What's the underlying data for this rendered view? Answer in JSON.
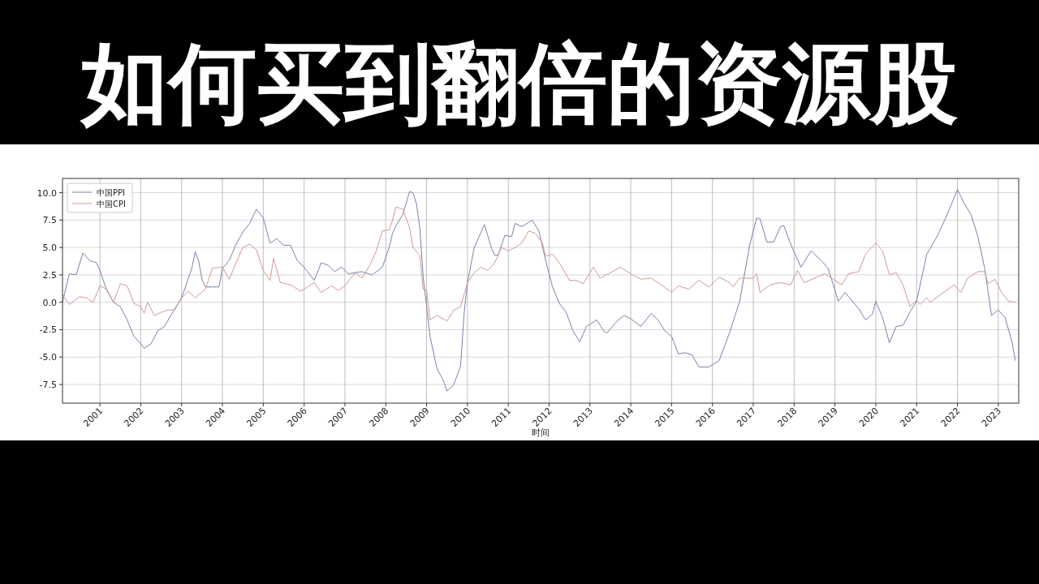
{
  "chart_data": {
    "type": "line",
    "title": "如何买到翻倍的资源股",
    "xlabel": "时间",
    "legend": "top left",
    "grid": true,
    "xlim": [
      "2000-02",
      "2023-07"
    ],
    "xticks": [
      "2001",
      "2002",
      "2003",
      "2004",
      "2005",
      "2006",
      "2007",
      "2008",
      "2009",
      "2010",
      "2011",
      "2012",
      "2013",
      "2014",
      "2015",
      "2016",
      "2017",
      "2018",
      "2019",
      "2020",
      "2021",
      "2022",
      "2023"
    ],
    "ylim": [
      -9.2,
      11.3
    ],
    "yticks": [
      {
        "value": -7.5,
        "label": "-7.5"
      },
      {
        "value": -5,
        "label": "-5.0"
      },
      {
        "value": -2.5,
        "label": "-2.5"
      },
      {
        "value": 0,
        "label": "0.0"
      },
      {
        "value": 2.5,
        "label": "2.5"
      },
      {
        "value": 5,
        "label": "5.0"
      },
      {
        "value": 7.5,
        "label": "7.5"
      },
      {
        "value": 10,
        "label": "10.0"
      }
    ],
    "series": [
      {
        "name": "中国PPI",
        "color": "#7c80aa",
        "x": [
          "2000-02",
          "2000-04",
          "2000-06",
          "2000-08",
          "2000-10",
          "2000-12",
          "2001-01",
          "2001-03",
          "2001-05",
          "2001-07",
          "2001-09",
          "2001-11",
          "2002-01",
          "2002-02",
          "2002-04",
          "2002-06",
          "2002-08",
          "2002-10",
          "2003-01",
          "2003-04",
          "2003-05",
          "2003-06",
          "2003-07",
          "2003-08",
          "2003-10",
          "2003-12",
          "2004-01",
          "2004-03",
          "2004-05",
          "2004-07",
          "2004-09",
          "2004-11",
          "2005-01",
          "2005-03",
          "2005-05",
          "2005-07",
          "2005-09",
          "2005-11",
          "2006-01",
          "2006-04",
          "2006-06",
          "2006-08",
          "2006-10",
          "2006-12",
          "2007-02",
          "2007-06",
          "2007-09",
          "2007-12",
          "2008-02",
          "2008-03",
          "2008-04",
          "2008-06",
          "2008-08",
          "2008-09",
          "2008-10",
          "2008-11",
          "2008-12",
          "2009-02",
          "2009-04",
          "2009-06",
          "2009-07",
          "2009-09",
          "2009-11",
          "2009-12",
          "2010-01",
          "2010-03",
          "2010-05",
          "2010-06",
          "2010-08",
          "2010-09",
          "2010-10",
          "2010-12",
          "2011-02",
          "2011-03",
          "2011-05",
          "2011-08",
          "2011-10",
          "2011-12",
          "2012-02",
          "2012-04",
          "2012-06",
          "2012-08",
          "2012-10",
          "2012-12",
          "2013-03",
          "2013-05",
          "2013-06",
          "2013-09",
          "2013-11",
          "2014-01",
          "2014-04",
          "2014-07",
          "2014-09",
          "2014-11",
          "2015-01",
          "2015-03",
          "2015-05",
          "2015-07",
          "2015-09",
          "2015-12",
          "2016-03",
          "2016-06",
          "2016-09",
          "2016-12",
          "2017-02",
          "2017-03",
          "2017-05",
          "2017-07",
          "2017-09",
          "2017-10",
          "2017-12",
          "2018-03",
          "2018-06",
          "2018-09",
          "2018-11",
          "2019-02",
          "2019-04",
          "2019-08",
          "2019-10",
          "2019-12",
          "2020-01",
          "2020-03",
          "2020-05",
          "2020-07",
          "2020-09",
          "2020-11",
          "2021-01",
          "2021-04",
          "2021-07",
          "2021-10",
          "2022-01",
          "2022-03",
          "2022-05",
          "2022-07",
          "2022-09",
          "2022-11",
          "2023-01",
          "2023-03",
          "2023-05",
          "2023-06"
        ],
        "values": [
          0.0,
          2.6,
          2.5,
          4.5,
          3.8,
          3.6,
          2.9,
          1.1,
          0.0,
          -0.4,
          -1.6,
          -3.1,
          -3.8,
          -4.2,
          -3.8,
          -2.6,
          -2.2,
          -1.1,
          0.4,
          3.1,
          4.6,
          3.8,
          2.1,
          1.4,
          1.4,
          1.4,
          3.1,
          3.8,
          5.3,
          6.4,
          7.2,
          8.5,
          7.7,
          5.4,
          5.8,
          5.2,
          5.2,
          3.8,
          3.2,
          2.0,
          3.6,
          3.4,
          2.8,
          3.2,
          2.6,
          2.8,
          2.5,
          3.2,
          5.0,
          6.3,
          7.0,
          8.0,
          10.1,
          10.0,
          9.0,
          6.8,
          2.3,
          -3.1,
          -6.0,
          -7.2,
          -8.1,
          -7.5,
          -5.8,
          -1.1,
          1.8,
          5.0,
          6.4,
          7.1,
          5.0,
          4.3,
          4.3,
          6.1,
          6.0,
          7.2,
          6.9,
          7.5,
          6.5,
          3.8,
          1.4,
          -0.1,
          -0.9,
          -2.6,
          -3.6,
          -2.2,
          -1.6,
          -2.6,
          -2.8,
          -1.7,
          -1.2,
          -1.5,
          -2.2,
          -1.0,
          -1.6,
          -2.6,
          -3.1,
          -4.7,
          -4.6,
          -4.8,
          -5.9,
          -5.9,
          -5.3,
          -2.8,
          0.1,
          5.3,
          7.7,
          7.6,
          5.5,
          5.5,
          6.9,
          7.0,
          5.3,
          3.2,
          4.7,
          3.8,
          3.1,
          0.1,
          0.9,
          -0.6,
          -1.6,
          -1.1,
          0.1,
          -1.4,
          -3.7,
          -2.2,
          -2.1,
          -0.9,
          0.1,
          4.4,
          6.0,
          8.0,
          10.3,
          9.0,
          8.0,
          6.0,
          3.1,
          -1.2,
          -0.7,
          -1.4,
          -3.6,
          -5.3
        ]
      },
      {
        "name": "中国CPI",
        "color": "#d09898",
        "x": [
          "2000-02",
          "2000-04",
          "2000-07",
          "2000-09",
          "2000-11",
          "2001-01",
          "2001-03",
          "2001-05",
          "2001-07",
          "2001-09",
          "2001-11",
          "2002-01",
          "2002-02",
          "2002-03",
          "2002-05",
          "2002-07",
          "2002-09",
          "2002-11",
          "2003-01",
          "2003-03",
          "2003-05",
          "2003-08",
          "2003-10",
          "2004-01",
          "2004-03",
          "2004-05",
          "2004-07",
          "2004-09",
          "2004-11",
          "2005-01",
          "2005-03",
          "2005-04",
          "2005-06",
          "2005-09",
          "2005-12",
          "2006-04",
          "2006-06",
          "2006-09",
          "2006-11",
          "2007-01",
          "2007-04",
          "2007-06",
          "2007-08",
          "2007-10",
          "2007-12",
          "2008-02",
          "2008-03",
          "2008-04",
          "2008-06",
          "2008-08",
          "2008-09",
          "2008-11",
          "2008-12",
          "2009-01",
          "2009-02",
          "2009-04",
          "2009-07",
          "2009-09",
          "2009-11",
          "2010-01",
          "2010-03",
          "2010-05",
          "2010-07",
          "2010-09",
          "2010-11",
          "2011-01",
          "2011-03",
          "2011-05",
          "2011-07",
          "2011-09",
          "2011-11",
          "2011-12",
          "2012-02",
          "2012-04",
          "2012-07",
          "2012-09",
          "2012-11",
          "2013-02",
          "2013-04",
          "2013-07",
          "2013-10",
          "2014-01",
          "2014-04",
          "2014-07",
          "2014-10",
          "2015-01",
          "2015-03",
          "2015-06",
          "2015-09",
          "2015-12",
          "2016-03",
          "2016-06",
          "2016-07",
          "2016-09",
          "2017-01",
          "2017-02",
          "2017-03",
          "2017-06",
          "2017-09",
          "2017-12",
          "2018-02",
          "2018-04",
          "2018-07",
          "2018-10",
          "2019-03",
          "2019-05",
          "2019-08",
          "2019-10",
          "2020-01",
          "2020-03",
          "2020-05",
          "2020-07",
          "2020-09",
          "2020-11",
          "2021-01",
          "2021-02",
          "2021-04",
          "2021-05",
          "2021-12",
          "2022-02",
          "2022-04",
          "2022-07",
          "2022-09",
          "2022-10",
          "2022-12",
          "2023-02",
          "2023-04",
          "2023-06"
        ],
        "values": [
          0.7,
          -0.2,
          0.5,
          0.4,
          0.0,
          1.5,
          1.2,
          0.0,
          1.7,
          1.5,
          -0.1,
          -0.4,
          -1.0,
          0.0,
          -1.2,
          -0.9,
          -0.7,
          -0.7,
          0.4,
          1.0,
          0.4,
          1.2,
          3.1,
          3.2,
          2.1,
          3.6,
          5.0,
          5.3,
          4.8,
          2.9,
          2.0,
          4.0,
          1.8,
          1.6,
          1.0,
          1.8,
          0.9,
          1.5,
          1.1,
          1.5,
          2.7,
          2.2,
          3.2,
          4.5,
          6.5,
          6.6,
          7.5,
          8.7,
          8.5,
          6.8,
          5.0,
          4.3,
          1.2,
          1.1,
          -1.6,
          -1.2,
          -1.7,
          -0.7,
          -0.4,
          1.8,
          2.7,
          3.2,
          2.9,
          3.6,
          5.0,
          4.7,
          5.0,
          5.4,
          6.5,
          6.3,
          5.4,
          4.2,
          4.4,
          3.6,
          2.0,
          2.0,
          1.7,
          3.2,
          2.2,
          2.7,
          3.2,
          2.6,
          2.1,
          2.2,
          1.6,
          0.9,
          1.5,
          1.2,
          2.0,
          1.4,
          2.3,
          1.8,
          1.4,
          2.2,
          2.2,
          2.6,
          0.9,
          1.6,
          1.8,
          1.6,
          2.9,
          1.8,
          2.2,
          2.6,
          1.6,
          2.6,
          2.8,
          4.4,
          5.4,
          4.7,
          2.5,
          2.7,
          1.6,
          -0.4,
          0.2,
          -0.2,
          0.4,
          0.0,
          1.6,
          0.9,
          2.2,
          2.8,
          2.8,
          1.7,
          2.1,
          0.9,
          0.1,
          0.0
        ]
      }
    ]
  }
}
